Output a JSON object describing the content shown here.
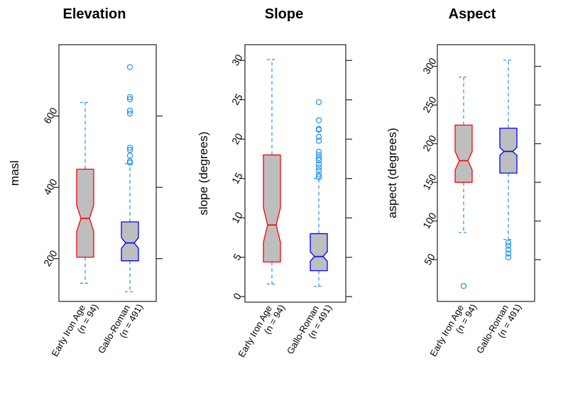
{
  "chart_data": [
    {
      "type": "boxplot",
      "title": "Elevation",
      "xlabel": "",
      "ylabel": "masl",
      "ylim": [
        80,
        800
      ],
      "yticks": [
        200,
        400,
        600
      ],
      "notched": true,
      "categories": [
        "Early Iron Age\n(n = 94)",
        "Gallo-Roman\n(n = 491)"
      ],
      "series": [
        {
          "name": "Early Iron Age",
          "n": 94,
          "color": "#ff0000",
          "whisker_low": 131,
          "q1": 204,
          "median": 313,
          "q3": 451,
          "whisker_high": 638,
          "notch": [
            276,
            350
          ],
          "outliers": []
        },
        {
          "name": "Gallo-Roman",
          "n": 491,
          "color": "#0000ff",
          "whisker_low": 107,
          "q1": 194,
          "median": 244,
          "q3": 303,
          "whisker_high": 466,
          "notch": [
            229,
            259
          ],
          "outliers": [
            737,
            653,
            647,
            615,
            607,
            511,
            505,
            489,
            473,
            469
          ]
        }
      ]
    },
    {
      "type": "boxplot",
      "title": "Slope",
      "xlabel": "",
      "ylabel": "slope (degrees)",
      "ylim": [
        -0.7,
        32
      ],
      "yticks": [
        0,
        5,
        10,
        15,
        20,
        25,
        30
      ],
      "notched": true,
      "categories": [
        "Early Iron Age\n(n = 94)",
        "Gallo-Roman\n(n = 491)"
      ],
      "series": [
        {
          "name": "Early Iron Age",
          "n": 94,
          "color": "#ff0000",
          "whisker_low": 1.6,
          "q1": 4.4,
          "median": 9.1,
          "q3": 18.0,
          "whisker_high": 30.1,
          "notch": [
            6.9,
            11.3
          ],
          "outliers": []
        },
        {
          "name": "Gallo-Roman",
          "n": 491,
          "color": "#0000ff",
          "whisker_low": 1.3,
          "q1": 3.3,
          "median": 5.1,
          "q3": 8.0,
          "whisker_high": 15.0,
          "notch": [
            4.5,
            5.7
          ],
          "outliers": [
            24.7,
            22.4,
            21.3,
            21.2,
            20.3,
            19.8,
            18.4,
            18.0,
            17.6,
            17.3,
            16.8,
            16.4,
            16.0,
            15.5,
            15.2
          ]
        }
      ]
    },
    {
      "type": "boxplot",
      "title": "Aspect",
      "xlabel": "",
      "ylabel": "aspect (degrees)",
      "ylim": [
        -4,
        328
      ],
      "yticks": [
        50,
        100,
        150,
        200,
        250,
        300
      ],
      "notched": true,
      "categories": [
        "Early Iron Age\n(n = 94)",
        "Gallo-Roman\n(n = 491)"
      ],
      "series": [
        {
          "name": "Early Iron Age",
          "n": 94,
          "color": "#ff0000",
          "whisker_low": 85,
          "q1": 150,
          "median": 178,
          "q3": 224,
          "whisker_high": 286,
          "notch": [
            166,
            190
          ],
          "outliers": [
            16
          ]
        },
        {
          "name": "Gallo-Roman",
          "n": 491,
          "color": "#0000ff",
          "whisker_low": 76,
          "q1": 162,
          "median": 190,
          "q3": 220,
          "whisker_high": 308,
          "notch": [
            185,
            195
          ],
          "outliers": [
            72,
            68,
            63,
            58,
            53
          ]
        }
      ]
    }
  ],
  "style": {
    "box_fill": "#bebebe",
    "whisker_color": "#1e90ff",
    "outlier_color": "#1e90ff",
    "axis_color": "#000000"
  }
}
